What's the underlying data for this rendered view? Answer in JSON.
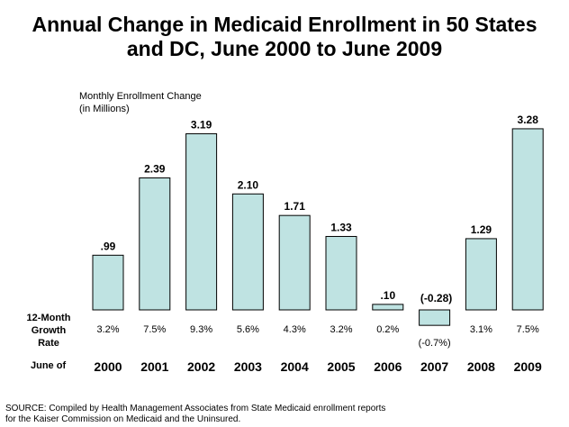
{
  "title": {
    "line1": "Annual Change in Medicaid Enrollment in 50 States",
    "line2": "and DC, June 2000 to June 2009"
  },
  "ylabel": {
    "line1": "Monthly Enrollment Change",
    "line2": "(in Millions)"
  },
  "growth_label": {
    "line1": "12-Month",
    "line2": "Growth Rate"
  },
  "year_label": "June of",
  "source": {
    "line1": "SOURCE: Compiled by Health Management Associates from State Medicaid enrollment reports",
    "line2": "for the Kaiser Commission on Medicaid and the Uninsured."
  },
  "chart_data": {
    "type": "bar",
    "categories": [
      "2000",
      "2001",
      "2002",
      "2003",
      "2004",
      "2005",
      "2006",
      "2007",
      "2008",
      "2009"
    ],
    "values": [
      0.99,
      2.39,
      3.19,
      2.1,
      1.71,
      1.33,
      0.1,
      -0.28,
      1.29,
      3.28
    ],
    "data_labels": [
      ".99",
      "2.39",
      "3.19",
      "2.10",
      "1.71",
      "1.33",
      ".10",
      "(-0.28)",
      "1.29",
      "3.28"
    ],
    "growth_rates": [
      "3.2%",
      "7.5%",
      "9.3%",
      "5.6%",
      "4.3%",
      "3.2%",
      "0.2%",
      "(-0.7%)",
      "3.1%",
      "7.5%"
    ],
    "ylabel": "Monthly Enrollment Change (in Millions)",
    "xlabel": "June of",
    "ylim": [
      -0.28,
      3.28
    ],
    "bar_color": "#bfe3e2",
    "grid": false
  }
}
